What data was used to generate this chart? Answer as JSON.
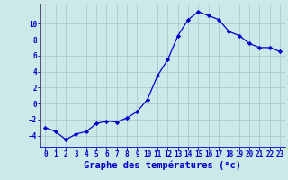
{
  "hours": [
    0,
    1,
    2,
    3,
    4,
    5,
    6,
    7,
    8,
    9,
    10,
    11,
    12,
    13,
    14,
    15,
    16,
    17,
    18,
    19,
    20,
    21,
    22,
    23
  ],
  "temperatures": [
    -3.0,
    -3.5,
    -4.5,
    -3.8,
    -3.5,
    -2.5,
    -2.2,
    -2.3,
    -1.8,
    -1.0,
    0.5,
    3.5,
    5.5,
    8.5,
    10.5,
    11.5,
    11.0,
    10.5,
    9.0,
    8.5,
    7.5,
    7.0,
    7.0,
    6.5
  ],
  "line_color": "#0000cc",
  "marker": "D",
  "marker_size": 2.2,
  "bg_color": "#cce8e8",
  "grid_color": "#aacccc",
  "xlabel": "Graphe des températures (°c)",
  "xlabel_color": "#0000cc",
  "xlabel_fontsize": 7.5,
  "xlabel_fontweight": "bold",
  "tick_color": "#0000cc",
  "tick_fontsize": 5.5,
  "ylim": [
    -5.5,
    12.5
  ],
  "yticks": [
    -4,
    -2,
    0,
    2,
    4,
    6,
    8,
    10
  ],
  "xticks": [
    0,
    1,
    2,
    3,
    4,
    5,
    6,
    7,
    8,
    9,
    10,
    11,
    12,
    13,
    14,
    15,
    16,
    17,
    18,
    19,
    20,
    21,
    22,
    23
  ],
  "spine_color": "#555577",
  "spine_bottom_color": "#0000cc",
  "axis_bg_color": "#cce8e8"
}
